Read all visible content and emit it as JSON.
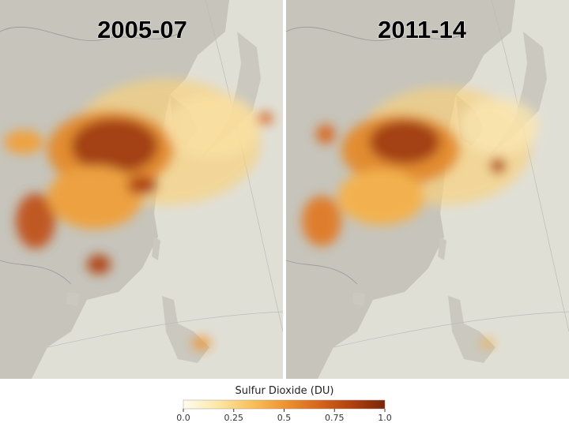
{
  "panels": [
    {
      "title": "2005-07"
    },
    {
      "title": "2011-14"
    }
  ],
  "colorbar": {
    "label": "Sulfur Dioxide (DU)",
    "range": [
      0,
      1
    ],
    "ticks": [
      {
        "value": 0,
        "label": "0.0"
      },
      0.25,
      0.5,
      0.75,
      {
        "value": 1,
        "label": "1.0"
      }
    ],
    "colors": [
      "#fffdf0",
      "#fde7a8",
      "#f9c25c",
      "#ef9530",
      "#d8661b",
      "#b0410f",
      "#7a2608"
    ]
  }
}
